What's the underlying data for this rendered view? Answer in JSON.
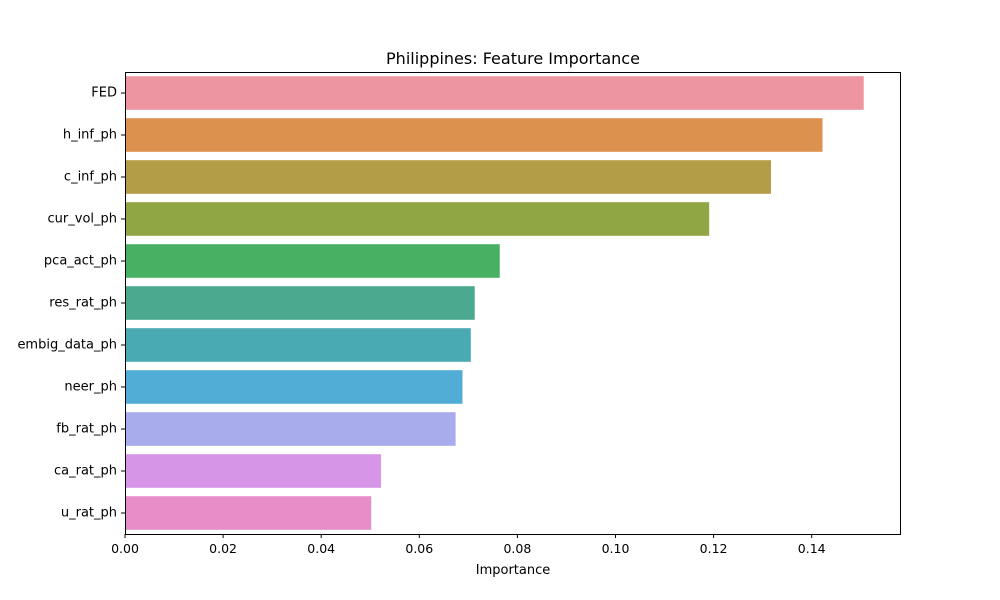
{
  "chart_data": {
    "type": "bar",
    "orientation": "horizontal",
    "title": "Philippines: Feature Importance",
    "xlabel": "Importance",
    "ylabel": "",
    "xlim": [
      0,
      0.158
    ],
    "xticks": [
      "0.00",
      "0.02",
      "0.04",
      "0.06",
      "0.08",
      "0.10",
      "0.12",
      "0.14"
    ],
    "grid": false,
    "categories": [
      "FED",
      "h_inf_ph",
      "c_inf_ph",
      "cur_vol_ph",
      "pca_act_ph",
      "res_rat_ph",
      "embig_data_ph",
      "neer_ph",
      "fb_rat_ph",
      "ca_rat_ph",
      "u_rat_ph"
    ],
    "values": [
      0.1506,
      0.1422,
      0.1317,
      0.1191,
      0.0764,
      0.0713,
      0.0705,
      0.0688,
      0.0674,
      0.0522,
      0.0502
    ],
    "colors": [
      "#ed96a2",
      "#dd914e",
      "#b49d47",
      "#90a544",
      "#48b062",
      "#4aa98f",
      "#4aaab3",
      "#51acd6",
      "#a8acec",
      "#d795e7",
      "#e78ec8"
    ]
  }
}
